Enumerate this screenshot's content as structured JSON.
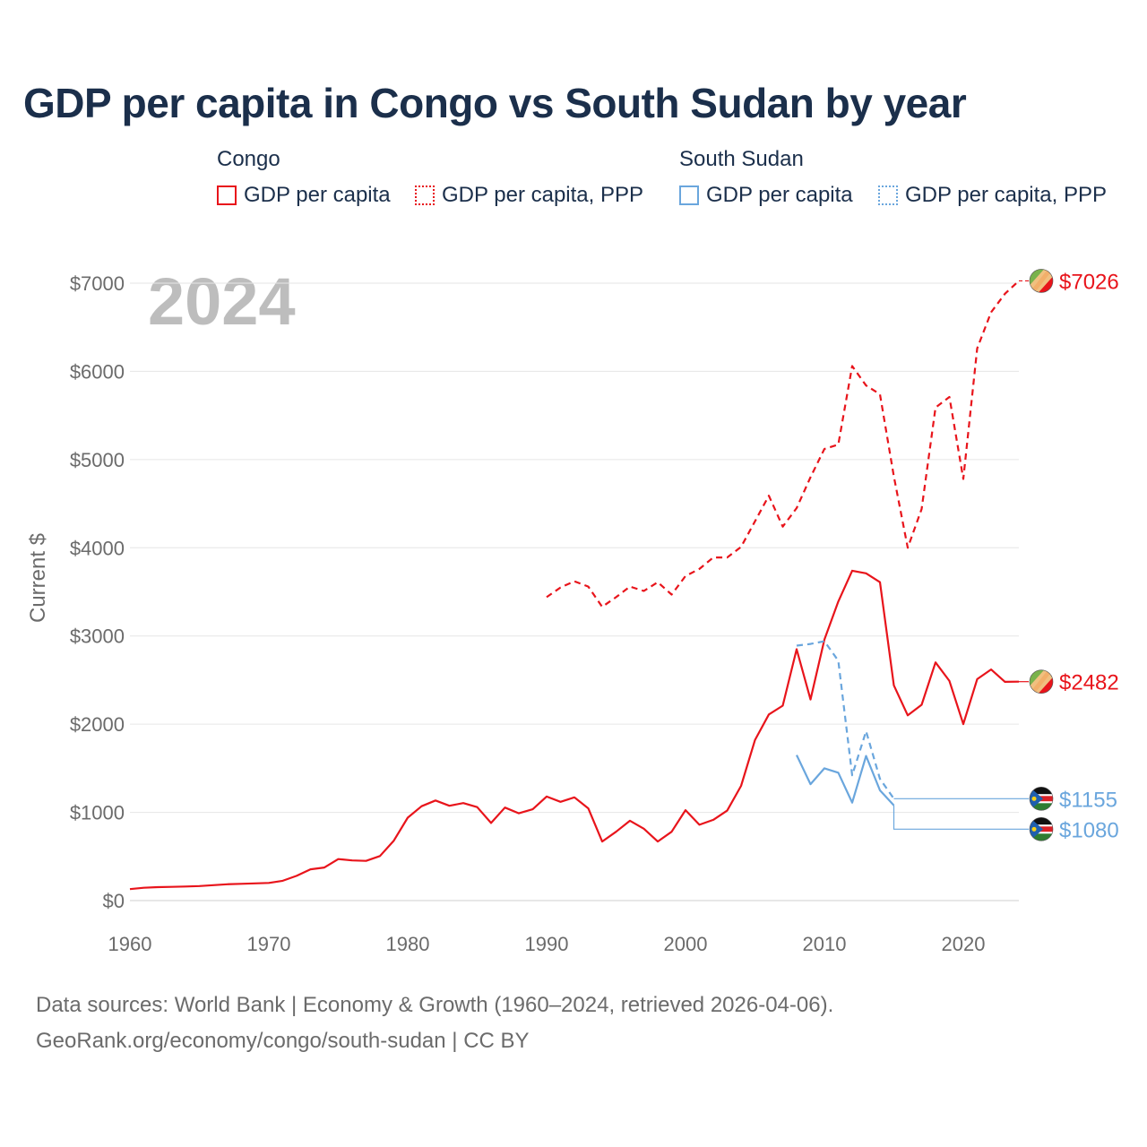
{
  "colors": {
    "congo": "#e8141b",
    "south_sudan": "#6aa6dd",
    "title": "#1b2f4b",
    "axis_text": "#6b6b6b",
    "watermark": "#bdbdbd",
    "grid": "#e6e6e6"
  },
  "title": "GDP per capita in Congo vs South Sudan by year",
  "legend": {
    "congo": {
      "title": "Congo",
      "items": [
        "GDP per capita",
        "GDP per capita, PPP"
      ]
    },
    "south_sudan": {
      "title": "South Sudan",
      "items": [
        "GDP per capita",
        "GDP per capita, PPP"
      ]
    }
  },
  "year_watermark": "2024",
  "footer": {
    "line1": "Data sources: World Bank | Economy & Growth (1960–2024, retrieved 2026-04-06).",
    "line2": "GeoRank.org/economy/congo/south-sudan | CC BY"
  },
  "chart_data": {
    "type": "line",
    "title": "GDP per capita in Congo vs South Sudan by year",
    "xlabel": "",
    "ylabel": "Current $",
    "xlim": [
      1960,
      2024
    ],
    "ylim": [
      0,
      7000
    ],
    "x_ticks": [
      1960,
      1970,
      1980,
      1990,
      2000,
      2010,
      2020
    ],
    "y_ticks": [
      0,
      1000,
      2000,
      3000,
      4000,
      5000,
      6000,
      7000
    ],
    "y_tick_labels": [
      "$0",
      "$1000",
      "$2000",
      "$3000",
      "$4000",
      "$5000",
      "$6000",
      "$7000"
    ],
    "series": [
      {
        "name": "Congo GDP per capita",
        "country": "congo",
        "style": "solid",
        "x": [
          1960,
          1961,
          1962,
          1963,
          1964,
          1965,
          1966,
          1967,
          1968,
          1969,
          1970,
          1971,
          1972,
          1973,
          1974,
          1975,
          1976,
          1977,
          1978,
          1979,
          1980,
          1981,
          1982,
          1983,
          1984,
          1985,
          1986,
          1987,
          1988,
          1989,
          1990,
          1991,
          1992,
          1993,
          1994,
          1995,
          1996,
          1997,
          1998,
          1999,
          2000,
          2001,
          2002,
          2003,
          2004,
          2005,
          2006,
          2007,
          2008,
          2009,
          2010,
          2011,
          2012,
          2013,
          2014,
          2015,
          2016,
          2017,
          2018,
          2019,
          2020,
          2021,
          2022,
          2023,
          2024
        ],
        "values": [
          130,
          145,
          152,
          155,
          160,
          165,
          175,
          185,
          190,
          195,
          200,
          225,
          280,
          355,
          375,
          470,
          455,
          450,
          505,
          680,
          940,
          1070,
          1135,
          1075,
          1105,
          1060,
          880,
          1055,
          990,
          1035,
          1180,
          1120,
          1170,
          1045,
          670,
          780,
          905,
          815,
          670,
          780,
          1025,
          860,
          915,
          1020,
          1300,
          1820,
          2110,
          2210,
          2850,
          2280,
          2960,
          3390,
          3740,
          3710,
          3610,
          2440,
          2100,
          2220,
          2700,
          2490,
          2000,
          2510,
          2620,
          2480,
          2482
        ]
      },
      {
        "name": "Congo GDP per capita, PPP",
        "country": "congo",
        "style": "dashed",
        "x": [
          1990,
          1991,
          1992,
          1993,
          1994,
          1995,
          1996,
          1997,
          1998,
          1999,
          2000,
          2001,
          2002,
          2003,
          2004,
          2005,
          2006,
          2007,
          2008,
          2009,
          2010,
          2011,
          2012,
          2013,
          2014,
          2015,
          2016,
          2017,
          2018,
          2019,
          2020,
          2021,
          2022,
          2023,
          2024
        ],
        "values": [
          3440,
          3550,
          3620,
          3560,
          3330,
          3440,
          3560,
          3510,
          3610,
          3470,
          3680,
          3760,
          3890,
          3890,
          4010,
          4300,
          4590,
          4240,
          4450,
          4800,
          5120,
          5170,
          6060,
          5840,
          5740,
          4810,
          4000,
          4440,
          5590,
          5710,
          4780,
          6260,
          6670,
          6880,
          7026
        ]
      },
      {
        "name": "South Sudan GDP per capita",
        "country": "south_sudan",
        "style": "solid",
        "x": [
          2008,
          2009,
          2010,
          2011,
          2012,
          2013,
          2014,
          2015
        ],
        "values": [
          1650,
          1320,
          1500,
          1450,
          1110,
          1640,
          1250,
          1080
        ]
      },
      {
        "name": "South Sudan GDP per capita, PPP",
        "country": "south_sudan",
        "style": "dashed",
        "x": [
          2008,
          2009,
          2010,
          2011,
          2012,
          2013,
          2014,
          2015
        ],
        "values": [
          2890,
          2910,
          2940,
          2720,
          1420,
          1920,
          1380,
          1155
        ]
      }
    ],
    "end_labels": [
      {
        "text": "$7026",
        "value": 7026,
        "country": "congo",
        "flag": "congo-flag-icon"
      },
      {
        "text": "$2482",
        "value": 2482,
        "country": "congo",
        "flag": "congo-flag-icon"
      },
      {
        "text": "$1155",
        "value": 1155,
        "country": "south_sudan",
        "flag": "south-sudan-flag-icon"
      },
      {
        "text": "$1080",
        "value": 1080,
        "country": "south_sudan",
        "flag": "south-sudan-flag-icon"
      }
    ]
  }
}
